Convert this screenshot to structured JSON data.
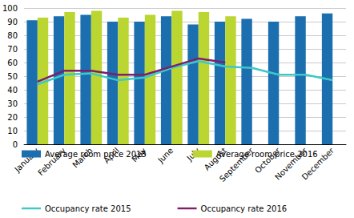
{
  "chart_data": {
    "type": "bar",
    "categories": [
      "January",
      "February",
      "March",
      "April",
      "May",
      "June",
      "July",
      "August",
      "September",
      "October",
      "November",
      "December"
    ],
    "series": [
      {
        "name": "Average room price 2015",
        "type": "bar",
        "color": "#1b6fae",
        "values": [
          91,
          94,
          95,
          90,
          90,
          94,
          88,
          90,
          92,
          90,
          94,
          96
        ]
      },
      {
        "name": "Average room price 2016",
        "type": "bar",
        "color": "#bcd631",
        "values": [
          93,
          97,
          98,
          93,
          95,
          98,
          97,
          94,
          null,
          null,
          null,
          null
        ]
      },
      {
        "name": "Occupancy rate 2015",
        "type": "line",
        "color": "#3ec8c8",
        "values": [
          44,
          51,
          52,
          47,
          49,
          56,
          61,
          57,
          56,
          51,
          51,
          47
        ]
      },
      {
        "name": "Occupancy rate 2016",
        "type": "line",
        "color": "#7d1f6c",
        "values": [
          46,
          54,
          54,
          51,
          51,
          57,
          63,
          60,
          null,
          null,
          null,
          null
        ]
      }
    ],
    "ylim": [
      0,
      100
    ],
    "yticks": [
      0,
      10,
      20,
      30,
      40,
      50,
      60,
      70,
      80,
      90,
      100
    ],
    "grid": true,
    "legend": "bottom"
  }
}
